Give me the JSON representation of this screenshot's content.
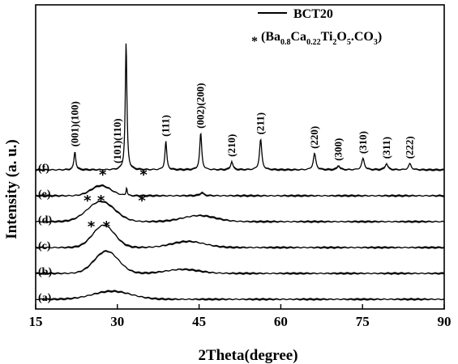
{
  "chart_data": {
    "type": "line",
    "xlabel": "2Theta(degree)",
    "ylabel": "Intensity (a. u.)",
    "xlim": [
      15,
      90
    ],
    "xticks": [
      "15",
      "30",
      "45",
      "60",
      "75",
      "90"
    ],
    "legend": {
      "placement": "top-right",
      "line_label": "BCT20",
      "marker_symbol": "*",
      "formula": [
        {
          "t": "(Ba",
          "s": false
        },
        {
          "t": "0.8",
          "s": true
        },
        {
          "t": "Ca",
          "s": false
        },
        {
          "t": "0.22",
          "s": true
        },
        {
          "t": "Ti",
          "s": false
        },
        {
          "t": "2",
          "s": true
        },
        {
          "t": "O",
          "s": false
        },
        {
          "t": "5",
          "s": true
        },
        {
          "t": ".CO",
          "s": false
        },
        {
          "t": "3",
          "s": true
        },
        {
          "t": ")",
          "s": false
        }
      ]
    },
    "series": [
      {
        "name": "(a)",
        "offset": 0.0,
        "peaks": [
          {
            "x": 29,
            "h": 0.4,
            "w": 3.5,
            "type": "broad"
          }
        ]
      },
      {
        "name": "(b)",
        "offset": 1.0,
        "peaks": [
          {
            "x": 28,
            "h": 1.1,
            "w": 2.2,
            "type": "broad"
          },
          {
            "x": 42,
            "h": 0.2,
            "w": 3,
            "type": "broad"
          }
        ]
      },
      {
        "name": "(c)",
        "offset": 2.0,
        "peaks": [
          {
            "x": 27.5,
            "h": 1.1,
            "w": 2.0,
            "type": "broad"
          },
          {
            "x": 43,
            "h": 0.3,
            "w": 3,
            "type": "broad"
          }
        ]
      },
      {
        "name": "(d)",
        "offset": 3.0,
        "peaks": [
          {
            "x": 27,
            "h": 1.0,
            "w": 2.5,
            "type": "broad"
          },
          {
            "x": 45,
            "h": 0.3,
            "w": 3,
            "type": "broad"
          }
        ]
      },
      {
        "name": "(e)",
        "offset": 4.0,
        "peaks": [
          {
            "x": 27,
            "h": 0.5,
            "w": 1.8,
            "type": "broad"
          },
          {
            "x": 31.7,
            "h": 0.4,
            "w": 0.12,
            "type": "sharp"
          },
          {
            "x": 45.5,
            "h": 0.15,
            "w": 0.4,
            "type": "sharp"
          }
        ]
      },
      {
        "name": "(f)",
        "offset": 5.0,
        "peaks": [
          {
            "x": 22.2,
            "h": 0.9,
            "w": 0.2,
            "type": "sharp"
          },
          {
            "x": 31.6,
            "h": 6.3,
            "w": 0.18,
            "type": "sharp"
          },
          {
            "x": 38.9,
            "h": 1.4,
            "w": 0.2,
            "type": "sharp"
          },
          {
            "x": 45.3,
            "h": 1.8,
            "w": 0.22,
            "type": "sharp"
          },
          {
            "x": 51.0,
            "h": 0.4,
            "w": 0.25,
            "type": "sharp"
          },
          {
            "x": 56.3,
            "h": 1.5,
            "w": 0.25,
            "type": "sharp"
          },
          {
            "x": 66.2,
            "h": 0.8,
            "w": 0.28,
            "type": "sharp"
          },
          {
            "x": 70.6,
            "h": 0.2,
            "w": 0.3,
            "type": "sharp"
          },
          {
            "x": 75.1,
            "h": 0.55,
            "w": 0.3,
            "type": "sharp"
          },
          {
            "x": 79.4,
            "h": 0.3,
            "w": 0.3,
            "type": "sharp"
          },
          {
            "x": 83.7,
            "h": 0.3,
            "w": 0.3,
            "type": "sharp"
          }
        ]
      }
    ],
    "peak_labels": [
      {
        "text": "(001)(100)",
        "x": 22.2
      },
      {
        "text": "(101)(110)",
        "x": 30.0
      },
      {
        "text": "(111)",
        "x": 38.9
      },
      {
        "text": "(002)(200)",
        "x": 45.3
      },
      {
        "text": "(210)",
        "x": 51.0
      },
      {
        "text": "(211)",
        "x": 56.3
      },
      {
        "text": "(220)",
        "x": 66.2
      },
      {
        "text": "(300)",
        "x": 70.6
      },
      {
        "text": "(310)",
        "x": 75.1
      },
      {
        "text": "(311)",
        "x": 79.4
      },
      {
        "text": "(222)",
        "x": 83.7
      }
    ],
    "stars": [
      {
        "series": "(e)",
        "x": 27.3
      },
      {
        "series": "(e)",
        "x": 34.8
      },
      {
        "series": "(d)",
        "x": 24.5
      },
      {
        "series": "(d)",
        "x": 27.0
      },
      {
        "series": "(d)",
        "x": 34.5
      },
      {
        "series": "(c)",
        "x": 25.2
      },
      {
        "series": "(c)",
        "x": 28.0
      }
    ],
    "grid": false
  }
}
